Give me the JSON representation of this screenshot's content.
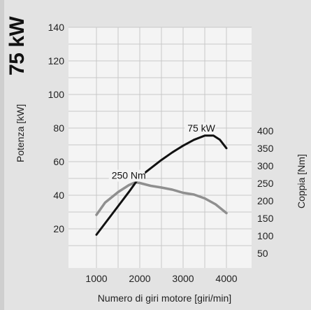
{
  "chart_data": {
    "type": "line",
    "badge": "75 kW",
    "xlabel": "Numero di giri motore [giri/min]",
    "ylabel_left": "Potenza [kW]",
    "ylabel_right": "Coppia [Nm]",
    "xlim": [
      700,
      4400
    ],
    "ylim_left": [
      0,
      140
    ],
    "ylim_right": [
      0,
      500
    ],
    "x_ticks": [
      1000,
      2000,
      3000,
      4000
    ],
    "y_ticks_left": [
      20,
      40,
      60,
      80,
      100,
      120,
      140
    ],
    "y_ticks_right": [
      50,
      100,
      150,
      200,
      250,
      300,
      350,
      400
    ],
    "grid": true,
    "series": [
      {
        "axis": "left",
        "color": "#111111",
        "x": [
          1000,
          1250,
          1500,
          1750,
          2000,
          2250,
          2500,
          2750,
          3000,
          3250,
          3500,
          3700,
          3850,
          4000
        ],
        "y": [
          16.5,
          25,
          33.5,
          42,
          51,
          56,
          61,
          65.5,
          69.5,
          73,
          75.5,
          75.5,
          73,
          68
        ]
      },
      {
        "axis": "right",
        "color": "#8f8f8f",
        "x": [
          1000,
          1200,
          1500,
          1750,
          1900,
          2000,
          2250,
          2500,
          2750,
          3000,
          3250,
          3500,
          3750,
          4000
        ],
        "y": [
          160,
          195,
          225,
          245,
          253,
          251,
          243,
          238,
          232,
          223,
          218,
          207,
          190,
          165
        ]
      }
    ],
    "annotations": [
      {
        "text": "75 kW",
        "x": 3100,
        "y": 78,
        "axis": "left"
      },
      {
        "text": "250 Nm",
        "x": 1350,
        "y": 263,
        "axis": "right"
      }
    ]
  }
}
